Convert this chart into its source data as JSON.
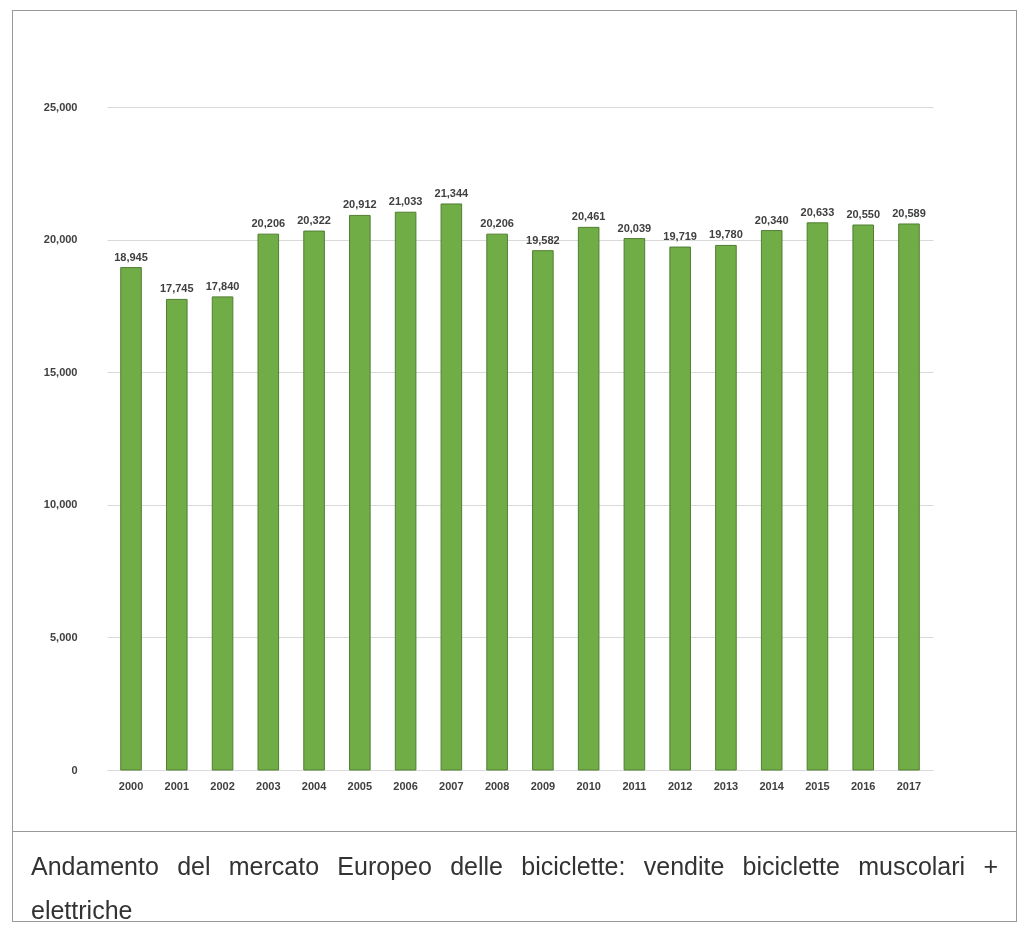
{
  "chart_data": {
    "type": "bar",
    "categories": [
      "2000",
      "2001",
      "2002",
      "2003",
      "2004",
      "2005",
      "2006",
      "2007",
      "2008",
      "2009",
      "2010",
      "2011",
      "2012",
      "2013",
      "2014",
      "2015",
      "2016",
      "2017"
    ],
    "values": [
      18945,
      17745,
      17840,
      20206,
      20322,
      20912,
      21033,
      21344,
      20206,
      19582,
      20461,
      20039,
      19719,
      19780,
      20340,
      20633,
      20550,
      20589
    ],
    "value_labels": [
      "18,945",
      "17,745",
      "17,840",
      "20,206",
      "20,322",
      "20,912",
      "21,033",
      "21,344",
      "20,206",
      "19,582",
      "20,461",
      "20,039",
      "19,719",
      "19,780",
      "20,340",
      "20,633",
      "20,550",
      "20,589"
    ],
    "color": "#70ad47",
    "ylim": [
      0,
      25000
    ],
    "yticks": [
      {
        "value": 0,
        "label": "0"
      },
      {
        "value": 5000,
        "label": "5,000"
      },
      {
        "value": 10000,
        "label": "10,000"
      },
      {
        "value": 15000,
        "label": "15,000"
      },
      {
        "value": 20000,
        "label": "20,000"
      },
      {
        "value": 25000,
        "label": "25,000"
      }
    ],
    "grid": "y",
    "annotations": [
      "Andamento del mercato Europeo delle biciclette: vendite biciclette muscolari + elettriche"
    ]
  }
}
